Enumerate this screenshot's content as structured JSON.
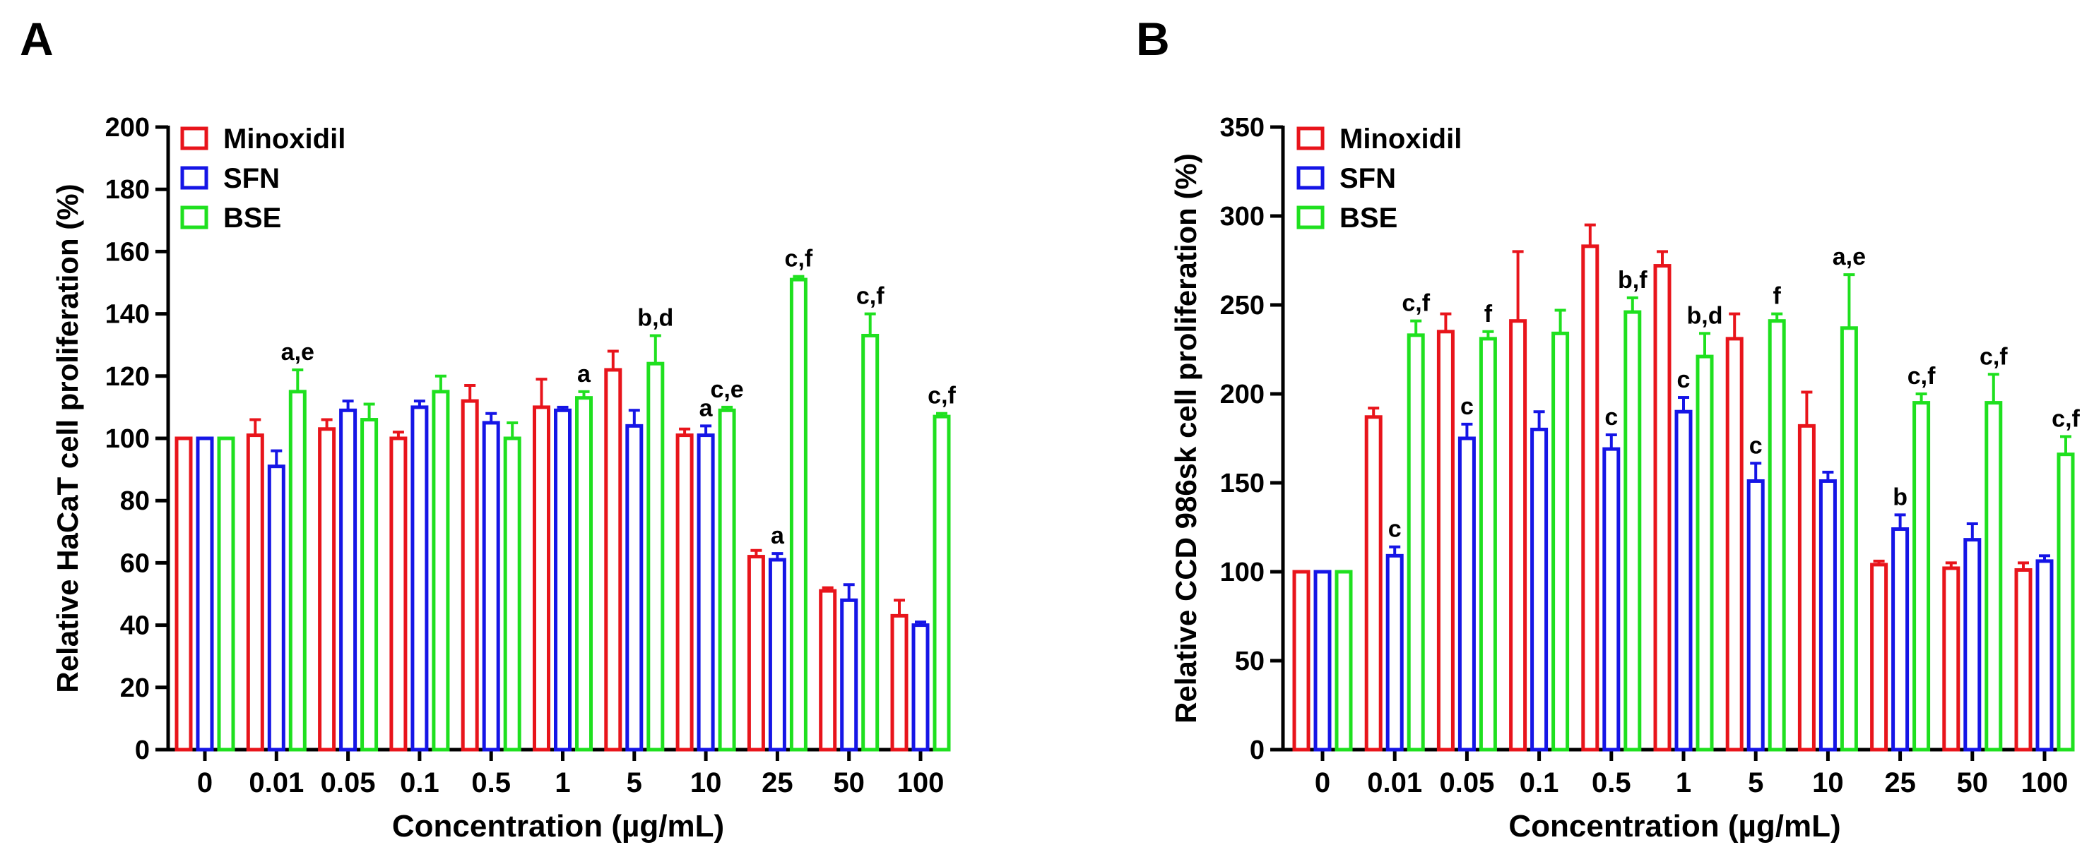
{
  "panel_labels": {
    "A": "A",
    "B": "B"
  },
  "colors": {
    "Minoxidil": "#e8141b",
    "SFN": "#1515e6",
    "BSE": "#1fe01f",
    "axis": "#000000"
  },
  "chart_data": [
    {
      "type": "bar",
      "panel": "A",
      "title": "",
      "xlabel": "Concentration (µg/mL)",
      "ylabel": "Relative HaCaT cell proliferation (%)",
      "ylim": [
        0,
        200
      ],
      "yticks": [
        0,
        20,
        40,
        60,
        80,
        100,
        120,
        140,
        160,
        180,
        200
      ],
      "legend_position": "top-left",
      "categories": [
        "0",
        "0.01",
        "0.05",
        "0.1",
        "0.5",
        "1",
        "5",
        "10",
        "25",
        "50",
        "100"
      ],
      "series": [
        {
          "name": "Minoxidil",
          "values": [
            100,
            101,
            103,
            100,
            112,
            110,
            122,
            101,
            62,
            51,
            43
          ],
          "errors": [
            0,
            5,
            3,
            2,
            5,
            9,
            6,
            2,
            2,
            1,
            5
          ],
          "annotations": [
            "",
            "",
            "",
            "",
            "",
            "",
            "",
            "",
            "",
            "",
            ""
          ]
        },
        {
          "name": "SFN",
          "values": [
            100,
            91,
            109,
            110,
            105,
            109,
            104,
            101,
            61,
            48,
            40
          ],
          "errors": [
            0,
            5,
            3,
            2,
            3,
            1,
            5,
            3,
            2,
            5,
            1
          ],
          "annotations": [
            "",
            "",
            "",
            "",
            "",
            "",
            "",
            "a",
            "a",
            "",
            ""
          ]
        },
        {
          "name": "BSE",
          "values": [
            100,
            115,
            106,
            115,
            100,
            113,
            124,
            109,
            151,
            133,
            107
          ],
          "errors": [
            0,
            7,
            5,
            5,
            5,
            2,
            9,
            1,
            1,
            7,
            1
          ],
          "annotations": [
            "",
            "a,e",
            "",
            "",
            "",
            "a",
            "b,d",
            "c,e",
            "c,f",
            "c,f",
            "c,f"
          ]
        }
      ]
    },
    {
      "type": "bar",
      "panel": "B",
      "title": "",
      "xlabel": "Concentration (µg/mL)",
      "ylabel": "Relative CCD 986sk cell proliferation (%)",
      "ylim": [
        0,
        350
      ],
      "yticks": [
        0,
        50,
        100,
        150,
        200,
        250,
        300,
        350
      ],
      "legend_position": "top-left",
      "categories": [
        "0",
        "0.01",
        "0.05",
        "0.1",
        "0.5",
        "1",
        "5",
        "10",
        "25",
        "50",
        "100"
      ],
      "series": [
        {
          "name": "Minoxidil",
          "values": [
            100,
            187,
            235,
            241,
            283,
            272,
            231,
            182,
            104,
            102,
            101
          ],
          "errors": [
            0,
            5,
            10,
            39,
            12,
            8,
            14,
            19,
            2,
            3,
            4
          ],
          "annotations": [
            "",
            "",
            "",
            "",
            "",
            "",
            "",
            "",
            "",
            "",
            ""
          ]
        },
        {
          "name": "SFN",
          "values": [
            100,
            109,
            175,
            180,
            169,
            190,
            151,
            151,
            124,
            118,
            106
          ],
          "errors": [
            0,
            5,
            8,
            10,
            8,
            8,
            10,
            5,
            8,
            9,
            3
          ],
          "annotations": [
            "",
            "c",
            "c",
            "",
            "c",
            "c",
            "c",
            "",
            "b",
            "",
            ""
          ]
        },
        {
          "name": "BSE",
          "values": [
            100,
            233,
            231,
            234,
            246,
            221,
            241,
            237,
            195,
            195,
            166
          ],
          "errors": [
            0,
            8,
            4,
            13,
            8,
            13,
            4,
            30,
            5,
            16,
            10
          ],
          "annotations": [
            "",
            "c,f",
            "f",
            "",
            "b,f",
            "b,d",
            "f",
            "a,e",
            "c,f",
            "c,f",
            "c,f"
          ]
        }
      ]
    }
  ]
}
